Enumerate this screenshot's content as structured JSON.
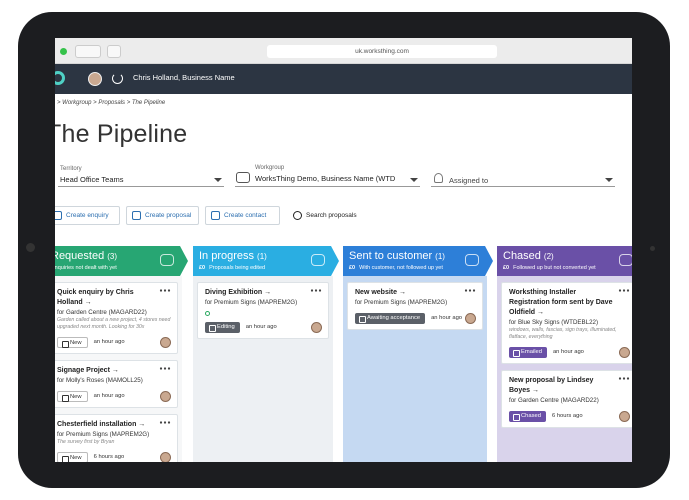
{
  "browser": {
    "url": "uk.worksthing.com"
  },
  "nav": {
    "user": "Chris Holland, Business Name"
  },
  "breadcrumb": "> Workgroup  > Proposals  > The Pipeline",
  "title": "The Pipeline",
  "filters": [
    {
      "label": "Territory",
      "value": "Head Office Teams"
    },
    {
      "label": "Workgroup",
      "value": "WorksThing Demo, Business Name (WTD"
    },
    {
      "value": "Assigned to"
    }
  ],
  "actions": [
    "Create enquiry",
    "Create proposal",
    "Create contact",
    "Search proposals"
  ],
  "columns": [
    {
      "title": "Requested",
      "count": "(3)",
      "subtitle": "Enquiries not dealt with yet",
      "cards": [
        {
          "title": "Quick enquiry by Chris Holland →",
          "company": "for Garden Centre (MAGARD22)",
          "note": "Garden called about a new project, 4 stores need upgraded next month. Looking for 30x",
          "status": "New",
          "time": "an hour ago"
        },
        {
          "title": "Signage Project →",
          "company": "for Molly's Roses (MAMOLL25)",
          "status": "New",
          "time": "an hour ago"
        },
        {
          "title": "Chesterfield installation →",
          "company": "for Premium Signs (MAPREM2G)",
          "note": "The survey first by Bryan",
          "status": "New",
          "time": "6 hours ago"
        }
      ]
    },
    {
      "title": "In progress",
      "count": "(1)",
      "amount": "£0",
      "subtitle": "Proposals being edited",
      "cards": [
        {
          "title": "Diving Exhibition →",
          "company": "for Premium Signs (MAPREM2G)",
          "status": "Editing",
          "time": "an hour ago"
        }
      ]
    },
    {
      "title": "Sent to customer",
      "count": "(1)",
      "amount": "£0",
      "subtitle": "With customer, not followed up yet",
      "cards": [
        {
          "title": "New website →",
          "company": "for Premium Signs (MAPREM2G)",
          "status": "Awaiting acceptance",
          "time": "an hour ago"
        }
      ]
    },
    {
      "title": "Chased",
      "count": "(2)",
      "amount": "£0",
      "subtitle": "Followed up but not converted yet",
      "cards": [
        {
          "title": "Worksthing Installer Registration form sent by Dave Oldfield →",
          "company": "for Blue Sky Signs (WTDEBL22)",
          "note": "windows, walls, fascias, sign trays, illuminated, flatface, everything",
          "status": "Emailed",
          "time": "an hour ago"
        },
        {
          "title": "New proposal by Lindsey Boyes →",
          "company": "for Garden Centre (MAGARD22)",
          "status": "Chased",
          "time": "6 hours ago"
        }
      ]
    }
  ]
}
